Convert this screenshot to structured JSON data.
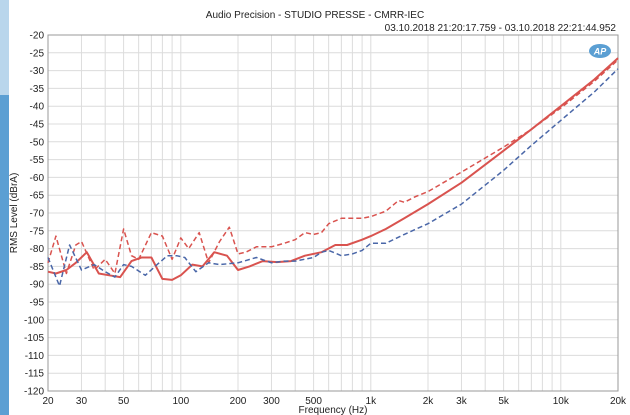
{
  "header": {
    "title": "Audio Precision - STUDIO PRESSE - CMRR-IEC",
    "timestamps": "03.10.2018 21:20:17.759 - 03.10.2018 22:21:44.952"
  },
  "logo": {
    "text": "AP"
  },
  "colors": {
    "red": "#d9534f",
    "blue": "#4a67a8",
    "grid": "#dcdcdc",
    "logo": "#5b9fd3"
  },
  "chart_data": {
    "type": "line",
    "title": "Audio Precision - STUDIO PRESSE - CMRR-IEC",
    "subtitle": "03.10.2018 21:20:17.759 - 03.10.2018 22:21:44.952",
    "xlabel": "Frequency (Hz)",
    "ylabel": "RMS Level (dBrA)",
    "xscale": "log",
    "xlim": [
      20,
      20000
    ],
    "ylim": [
      -120,
      -20
    ],
    "grid": true,
    "x_ticks": [
      {
        "value": 20,
        "label": "20"
      },
      {
        "value": 30,
        "label": "30"
      },
      {
        "value": 50,
        "label": "50"
      },
      {
        "value": 100,
        "label": "100"
      },
      {
        "value": 200,
        "label": "200"
      },
      {
        "value": 300,
        "label": "300"
      },
      {
        "value": 500,
        "label": "500"
      },
      {
        "value": 1000,
        "label": "1k"
      },
      {
        "value": 2000,
        "label": "2k"
      },
      {
        "value": 3000,
        "label": "3k"
      },
      {
        "value": 5000,
        "label": "5k"
      },
      {
        "value": 10000,
        "label": "10k"
      },
      {
        "value": 20000,
        "label": "20k"
      }
    ],
    "y_ticks": [
      -20,
      -25,
      -30,
      -35,
      -40,
      -45,
      -50,
      -55,
      -60,
      -65,
      -70,
      -75,
      -80,
      -85,
      -90,
      -95,
      -100,
      -105,
      -110,
      -115,
      -120
    ],
    "series": [
      {
        "color": "#d9534f",
        "style": "solid",
        "x": [
          20,
          22,
          25,
          28,
          32,
          37,
          42,
          48,
          55,
          62,
          70,
          80,
          90,
          100,
          115,
          130,
          150,
          175,
          200,
          230,
          270,
          320,
          380,
          450,
          550,
          650,
          750,
          900,
          1000,
          1200,
          1500,
          2000,
          3000,
          5000,
          7000,
          10000,
          15000,
          20000
        ],
        "y": [
          -86.5,
          -87,
          -86,
          -84,
          -81,
          -87,
          -87.5,
          -88,
          -83.5,
          -82.5,
          -82.5,
          -88.5,
          -88.8,
          -87.5,
          -84.5,
          -85,
          -81,
          -82,
          -86,
          -85,
          -83.5,
          -83.8,
          -83.5,
          -82,
          -81,
          -79,
          -79,
          -77.5,
          -76.5,
          -74.5,
          -71.5,
          -67.5,
          -61.5,
          -52.5,
          -46.5,
          -40,
          -32.5,
          -26.5
        ]
      },
      {
        "color": "#d9534f",
        "style": "dashed",
        "x": [
          20,
          22,
          25,
          28,
          30,
          35,
          40,
          45,
          50,
          55,
          60,
          70,
          80,
          90,
          100,
          110,
          125,
          140,
          160,
          180,
          200,
          220,
          250,
          300,
          350,
          400,
          450,
          500,
          550,
          600,
          700,
          800,
          900,
          1000,
          1200,
          1400,
          1500,
          1700,
          2000,
          3000,
          5000,
          7000,
          10000,
          15000,
          20000
        ],
        "y": [
          -84,
          -76.5,
          -87,
          -79,
          -78,
          -86,
          -83,
          -87,
          -74.5,
          -82,
          -83,
          -75.5,
          -76.5,
          -83,
          -77,
          -80,
          -75.5,
          -84,
          -78,
          -74,
          -81.5,
          -81,
          -79.5,
          -79.5,
          -78.5,
          -77.5,
          -75.5,
          -76,
          -75.5,
          -73,
          -71.5,
          -71.5,
          -71.5,
          -71,
          -69.5,
          -66.5,
          -67,
          -65.5,
          -64,
          -58.5,
          -51.5,
          -46.5,
          -40.5,
          -33,
          -27
        ]
      },
      {
        "color": "#4a67a8",
        "style": "dashed",
        "x": [
          20,
          23,
          26,
          30,
          35,
          40,
          45,
          50,
          55,
          65,
          75,
          85,
          95,
          105,
          120,
          140,
          160,
          200,
          250,
          300,
          350,
          400,
          500,
          550,
          600,
          700,
          800,
          900,
          1000,
          1200,
          1500,
          2000,
          3000,
          5000,
          7000,
          10000,
          15000,
          20000
        ],
        "y": [
          -82.5,
          -90.5,
          -79,
          -86,
          -84.5,
          -86.5,
          -88,
          -84.5,
          -85,
          -87.5,
          -84.5,
          -82,
          -82,
          -82.5,
          -86.5,
          -84,
          -84.5,
          -84,
          -82.5,
          -84,
          -83.5,
          -83.5,
          -82.5,
          -81,
          -80.5,
          -82,
          -81.5,
          -80.5,
          -78.5,
          -78.5,
          -76,
          -73,
          -67.5,
          -58,
          -51,
          -44,
          -36,
          -29.5
        ]
      }
    ]
  }
}
